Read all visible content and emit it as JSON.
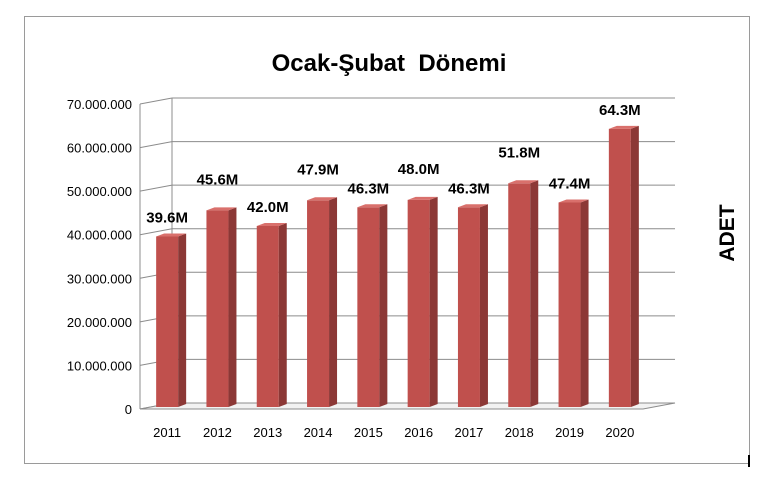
{
  "chart_data": {
    "type": "bar",
    "title": "Ocak-Şubat  Dönemi",
    "ylabel": "ADET",
    "xlabel": "",
    "categories": [
      "2011",
      "2012",
      "2013",
      "2014",
      "2015",
      "2016",
      "2017",
      "2018",
      "2019",
      "2020"
    ],
    "values": [
      39600000,
      45600000,
      42000000,
      47900000,
      46300000,
      48000000,
      46300000,
      51800000,
      47400000,
      64300000
    ],
    "data_labels": [
      "39.6M",
      "45.6M",
      "42.0M",
      "47.9M",
      "46.3M",
      "48.0M",
      "46.3M",
      "51.8M",
      "47.4M",
      "64.3M"
    ],
    "y_ticks": [
      "0",
      "10.000.000",
      "20.000.000",
      "30.000.000",
      "40.000.000",
      "50.000.000",
      "60.000.000",
      "70.000.000"
    ],
    "ylim": [
      0,
      70000000
    ],
    "grid": true,
    "style": "3d-bar",
    "colors": {
      "bar_front": "#c0504d",
      "bar_side": "#8c3836",
      "bar_top": "#d9706c",
      "grid": "#8c8c8c",
      "wall": "#ffffff"
    }
  }
}
